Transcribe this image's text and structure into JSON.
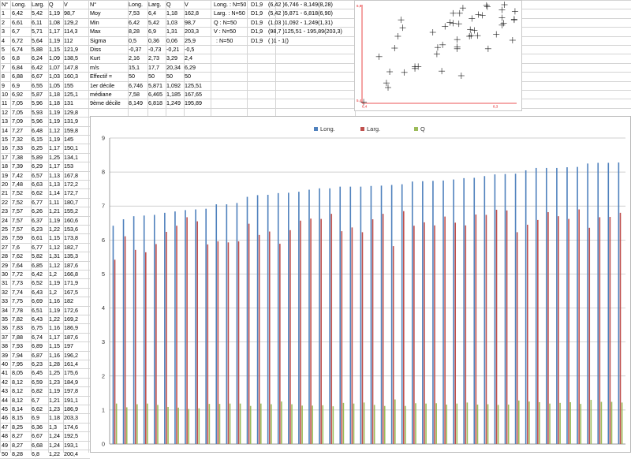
{
  "table": {
    "headers": [
      "N°",
      "Long.",
      "Larg.",
      "Q",
      "V"
    ],
    "rows": [
      [
        "1",
        "6,42",
        "5,42",
        "1,19",
        "98,7"
      ],
      [
        "2",
        "6,61",
        "6,11",
        "1,08",
        "129,2"
      ],
      [
        "3",
        "6,7",
        "5,71",
        "1,17",
        "114,3"
      ],
      [
        "4",
        "6,72",
        "5,64",
        "1,19",
        "112"
      ],
      [
        "5",
        "6,74",
        "5,88",
        "1,15",
        "121,9"
      ],
      [
        "6",
        "6,8",
        "6,24",
        "1,09",
        "138,5"
      ],
      [
        "7",
        "6,84",
        "6,42",
        "1,07",
        "147,8"
      ],
      [
        "8",
        "6,88",
        "6,67",
        "1,03",
        "160,3"
      ],
      [
        "9",
        "6,9",
        "6,55",
        "1,05",
        "155"
      ],
      [
        "10",
        "6,92",
        "5,87",
        "1,18",
        "125,1"
      ],
      [
        "11",
        "7,05",
        "5,96",
        "1,18",
        "131"
      ],
      [
        "12",
        "7,05",
        "5,93",
        "1,19",
        "129,8"
      ],
      [
        "13",
        "7,09",
        "5,96",
        "1,19",
        "131,9"
      ],
      [
        "14",
        "7,27",
        "6,48",
        "1,12",
        "159,8"
      ],
      [
        "15",
        "7,32",
        "6,15",
        "1,19",
        "145"
      ],
      [
        "16",
        "7,33",
        "6,25",
        "1,17",
        "150,1"
      ],
      [
        "17",
        "7,38",
        "5,89",
        "1,25",
        "134,1"
      ],
      [
        "18",
        "7,39",
        "6,29",
        "1,17",
        "153"
      ],
      [
        "19",
        "7,42",
        "6,57",
        "1,13",
        "167,8"
      ],
      [
        "20",
        "7,48",
        "6,63",
        "1,13",
        "172,2"
      ],
      [
        "21",
        "7,52",
        "6,62",
        "1,14",
        "172,7"
      ],
      [
        "22",
        "7,52",
        "6,77",
        "1,11",
        "180,7"
      ],
      [
        "23",
        "7,57",
        "6,26",
        "1,21",
        "155,2"
      ],
      [
        "24",
        "7,57",
        "6,37",
        "1,19",
        "160,6"
      ],
      [
        "25",
        "7,57",
        "6,23",
        "1,22",
        "153,6"
      ],
      [
        "26",
        "7,59",
        "6,61",
        "1,15",
        "173,8"
      ],
      [
        "27",
        "7,6",
        "6,77",
        "1,12",
        "182,7"
      ],
      [
        "28",
        "7,62",
        "5,82",
        "1,31",
        "135,3"
      ],
      [
        "29",
        "7,64",
        "6,85",
        "1,12",
        "187,6"
      ],
      [
        "30",
        "7,72",
        "6,42",
        "1,2",
        "166,8"
      ],
      [
        "31",
        "7,73",
        "6,52",
        "1,19",
        "171,9"
      ],
      [
        "32",
        "7,74",
        "6,43",
        "1,2",
        "167,5"
      ],
      [
        "33",
        "7,75",
        "6,69",
        "1,16",
        "182"
      ],
      [
        "34",
        "7,78",
        "6,51",
        "1,19",
        "172,6"
      ],
      [
        "35",
        "7,82",
        "6,43",
        "1,22",
        "169,2"
      ],
      [
        "36",
        "7,83",
        "6,75",
        "1,16",
        "186,9"
      ],
      [
        "37",
        "7,88",
        "6,74",
        "1,17",
        "187,6"
      ],
      [
        "38",
        "7,93",
        "6,89",
        "1,15",
        "197"
      ],
      [
        "39",
        "7,94",
        "6,87",
        "1,16",
        "196,2"
      ],
      [
        "40",
        "7,95",
        "6,23",
        "1,28",
        "161,4"
      ],
      [
        "41",
        "8,05",
        "6,45",
        "1,25",
        "175,6"
      ],
      [
        "42",
        "8,12",
        "6,59",
        "1,23",
        "184,9"
      ],
      [
        "43",
        "8,12",
        "6,82",
        "1,19",
        "197,8"
      ],
      [
        "44",
        "8,12",
        "6,7",
        "1,21",
        "191,1"
      ],
      [
        "45",
        "8,14",
        "6,62",
        "1,23",
        "186,9"
      ],
      [
        "46",
        "8,15",
        "6,9",
        "1,18",
        "203,3"
      ],
      [
        "47",
        "8,25",
        "6,36",
        "1,3",
        "174,6"
      ],
      [
        "48",
        "8,27",
        "6,67",
        "1,24",
        "192,5"
      ],
      [
        "49",
        "8,27",
        "6,68",
        "1,24",
        "193,1"
      ],
      [
        "50",
        "8,28",
        "6,8",
        "1,22",
        "200,4"
      ]
    ]
  },
  "stats": {
    "headers": [
      "N°",
      "Long.",
      "Larg.",
      "Q",
      "V"
    ],
    "rows": [
      [
        "Moy",
        "7,53",
        "6,4",
        "1,18",
        "162,8"
      ],
      [
        "Min",
        "6,42",
        "5,42",
        "1,03",
        "98,7"
      ],
      [
        "Max",
        "8,28",
        "6,9",
        "1,31",
        "203,3"
      ],
      [
        "Sigma",
        "0,5",
        "0,36",
        "0,06",
        "25,9"
      ],
      [
        "Diss",
        "-0,37",
        "-0,73",
        "-0,21",
        "-0,5"
      ],
      [
        "Kurt",
        "2,16",
        "2,73",
        "3,29",
        "2,4"
      ],
      [
        "m/s",
        "15,1",
        "17,7",
        "20,34",
        "6,29"
      ],
      [
        "Effectif =",
        "50",
        "50",
        "50",
        "50"
      ],
      [
        "1er décile",
        "6,746",
        "5,871",
        "1,092",
        "125,51"
      ],
      [
        "médiane",
        "7,58",
        "6,465",
        "1,185",
        "167,65"
      ],
      [
        "9ème décile",
        "8,149",
        "6,818",
        "1,249",
        "195,89"
      ]
    ]
  },
  "summary": {
    "rows": [
      [
        "Long. : N=50",
        "D1,9",
        "(6,42 )6,746 - 8,149(8,28)"
      ],
      [
        "Larg. : N=50",
        "D1,9",
        "(5,42 )5,871 - 6,818(6,90)"
      ],
      [
        "Q : N=50",
        "D1,9",
        "(1,03 )1,092 - 1,249(1,31)"
      ],
      [
        "V : N=50",
        "D1,9",
        "(98,7 )125,51 - 195,89(203,3)"
      ],
      [
        ": N=50",
        "D1,9",
        "( )1 - 1()"
      ]
    ]
  },
  "colors": {
    "long": "#4f81bd",
    "larg": "#c0504d",
    "q": "#9bbb59",
    "scatter_axis": "#e41a1c"
  },
  "chart_data": [
    {
      "type": "bar",
      "title": "",
      "xlabel": "",
      "ylabel": "",
      "ylim": [
        0,
        9
      ],
      "yticks": [
        "0",
        "1",
        "2",
        "3",
        "4",
        "5",
        "6",
        "7",
        "8",
        "9"
      ],
      "grid": true,
      "legend_position": "top",
      "series": [
        {
          "name": "Long.",
          "values": [
            6.42,
            6.61,
            6.7,
            6.72,
            6.74,
            6.8,
            6.84,
            6.88,
            6.9,
            6.92,
            7.05,
            7.05,
            7.09,
            7.27,
            7.32,
            7.33,
            7.38,
            7.39,
            7.42,
            7.48,
            7.52,
            7.52,
            7.57,
            7.57,
            7.57,
            7.59,
            7.6,
            7.62,
            7.64,
            7.72,
            7.73,
            7.74,
            7.75,
            7.78,
            7.82,
            7.83,
            7.88,
            7.93,
            7.94,
            7.95,
            8.05,
            8.12,
            8.12,
            8.12,
            8.14,
            8.15,
            8.25,
            8.27,
            8.27,
            8.28
          ]
        },
        {
          "name": "Larg.",
          "values": [
            5.42,
            6.11,
            5.71,
            5.64,
            5.88,
            6.24,
            6.42,
            6.67,
            6.55,
            5.87,
            5.96,
            5.93,
            5.96,
            6.48,
            6.15,
            6.25,
            5.89,
            6.29,
            6.57,
            6.63,
            6.62,
            6.77,
            6.26,
            6.37,
            6.23,
            6.61,
            6.77,
            5.82,
            6.85,
            6.42,
            6.52,
            6.43,
            6.69,
            6.51,
            6.43,
            6.75,
            6.74,
            6.89,
            6.87,
            6.23,
            6.45,
            6.59,
            6.82,
            6.7,
            6.62,
            6.9,
            6.36,
            6.67,
            6.68,
            6.8
          ]
        },
        {
          "name": "Q",
          "values": [
            1.19,
            1.08,
            1.17,
            1.19,
            1.15,
            1.09,
            1.07,
            1.03,
            1.05,
            1.18,
            1.18,
            1.19,
            1.19,
            1.12,
            1.19,
            1.17,
            1.25,
            1.17,
            1.13,
            1.13,
            1.14,
            1.11,
            1.21,
            1.19,
            1.22,
            1.15,
            1.12,
            1.31,
            1.12,
            1.2,
            1.19,
            1.2,
            1.16,
            1.19,
            1.22,
            1.16,
            1.17,
            1.15,
            1.16,
            1.28,
            1.25,
            1.23,
            1.19,
            1.21,
            1.23,
            1.18,
            1.3,
            1.24,
            1.24,
            1.22
          ]
        }
      ]
    },
    {
      "type": "scatter",
      "title": "",
      "xlabel": "",
      "ylabel": "",
      "xlim": [
        6.4,
        8.3
      ],
      "ylim": [
        5.4,
        6.9
      ],
      "xtick_labels": [
        "6,4",
        "8,3"
      ],
      "ytick_labels": [
        "5,4",
        "6,9"
      ],
      "x": [
        6.42,
        6.61,
        6.7,
        6.72,
        6.74,
        6.8,
        6.84,
        6.88,
        6.9,
        6.92,
        7.05,
        7.05,
        7.09,
        7.27,
        7.32,
        7.33,
        7.38,
        7.39,
        7.42,
        7.48,
        7.52,
        7.52,
        7.57,
        7.57,
        7.57,
        7.59,
        7.6,
        7.62,
        7.64,
        7.72,
        7.73,
        7.74,
        7.75,
        7.78,
        7.82,
        7.83,
        7.88,
        7.93,
        7.94,
        7.95,
        8.05,
        8.12,
        8.12,
        8.12,
        8.14,
        8.15,
        8.25,
        8.27,
        8.27,
        8.28
      ],
      "y": [
        5.42,
        6.11,
        5.71,
        5.64,
        5.88,
        6.24,
        6.42,
        6.67,
        6.55,
        5.87,
        5.96,
        5.93,
        5.96,
        6.48,
        6.15,
        6.25,
        5.89,
        6.29,
        6.57,
        6.63,
        6.62,
        6.77,
        6.26,
        6.37,
        6.23,
        6.61,
        6.77,
        5.82,
        6.85,
        6.42,
        6.52,
        6.43,
        6.69,
        6.51,
        6.43,
        6.75,
        6.74,
        6.89,
        6.87,
        6.23,
        6.45,
        6.59,
        6.82,
        6.7,
        6.62,
        6.9,
        6.36,
        6.67,
        6.68,
        6.8
      ]
    }
  ]
}
